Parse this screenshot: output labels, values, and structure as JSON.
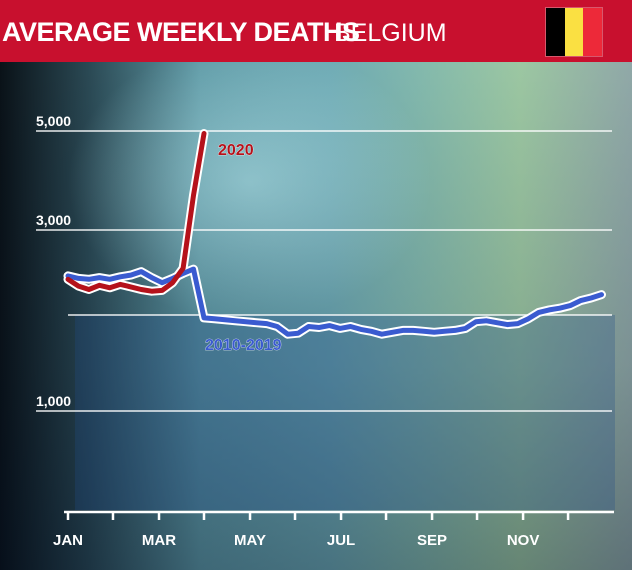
{
  "header": {
    "title": "AVERAGE WEEKLY DEATHS",
    "country": "BELGIUM",
    "flag_colors": [
      "#000000",
      "#fae042",
      "#ed2939"
    ],
    "background": "#c8102e"
  },
  "chart_data": {
    "type": "line",
    "title": "AVERAGE WEEKLY DEATHS",
    "subtitle": "BELGIUM",
    "xlabel": "",
    "ylabel": "",
    "x_tick_labels": [
      "JAN",
      "MAR",
      "MAY",
      "JUL",
      "SEP",
      "NOV"
    ],
    "x_tick_weeks": [
      1,
      9.7,
      18.4,
      27.1,
      35.8,
      44.5
    ],
    "x_minor_ticks_weeks": [
      1,
      5.3,
      9.7,
      14,
      18.4,
      22.7,
      27.1,
      31.4,
      35.8,
      40.1,
      44.5,
      48.8
    ],
    "xlim": [
      1,
      53
    ],
    "y_ticks": [
      1000,
      2000,
      3000,
      5000
    ],
    "y_tick_labels": [
      "1,000",
      "",
      "3,000",
      "5,000"
    ],
    "ylim": [
      0,
      5000
    ],
    "y_scale": "piecewise",
    "grid": true,
    "legend": "inline",
    "series": [
      {
        "name": "2010-2019",
        "color": "#3a5bd0",
        "x": [
          1,
          2,
          3,
          4,
          5,
          6,
          7,
          8,
          9,
          10,
          11,
          12,
          13,
          14,
          15,
          16,
          17,
          18,
          19,
          20,
          21,
          22,
          23,
          24,
          25,
          26,
          27,
          28,
          29,
          30,
          31,
          32,
          33,
          34,
          35,
          36,
          37,
          38,
          39,
          40,
          41,
          42,
          43,
          44,
          45,
          46,
          47,
          48,
          49,
          50,
          51,
          52
        ],
        "values": [
          2460,
          2430,
          2420,
          2440,
          2420,
          2450,
          2470,
          2510,
          2440,
          2380,
          2430,
          2490,
          2540,
          1970,
          1960,
          1950,
          1940,
          1930,
          1920,
          1910,
          1880,
          1800,
          1810,
          1880,
          1870,
          1890,
          1860,
          1880,
          1850,
          1830,
          1800,
          1820,
          1840,
          1840,
          1830,
          1820,
          1830,
          1840,
          1860,
          1930,
          1940,
          1920,
          1900,
          1910,
          1960,
          2030,
          2060,
          2080,
          2110,
          2170,
          2200,
          2240
        ]
      },
      {
        "name": "2020",
        "color": "#b5121b",
        "x": [
          1,
          2,
          3,
          4,
          5,
          6,
          7,
          8,
          9,
          10,
          11,
          12,
          13,
          14
        ],
        "values": [
          2420,
          2340,
          2300,
          2350,
          2320,
          2360,
          2330,
          2300,
          2280,
          2290,
          2380,
          2550,
          3700,
          4950
        ]
      }
    ]
  }
}
